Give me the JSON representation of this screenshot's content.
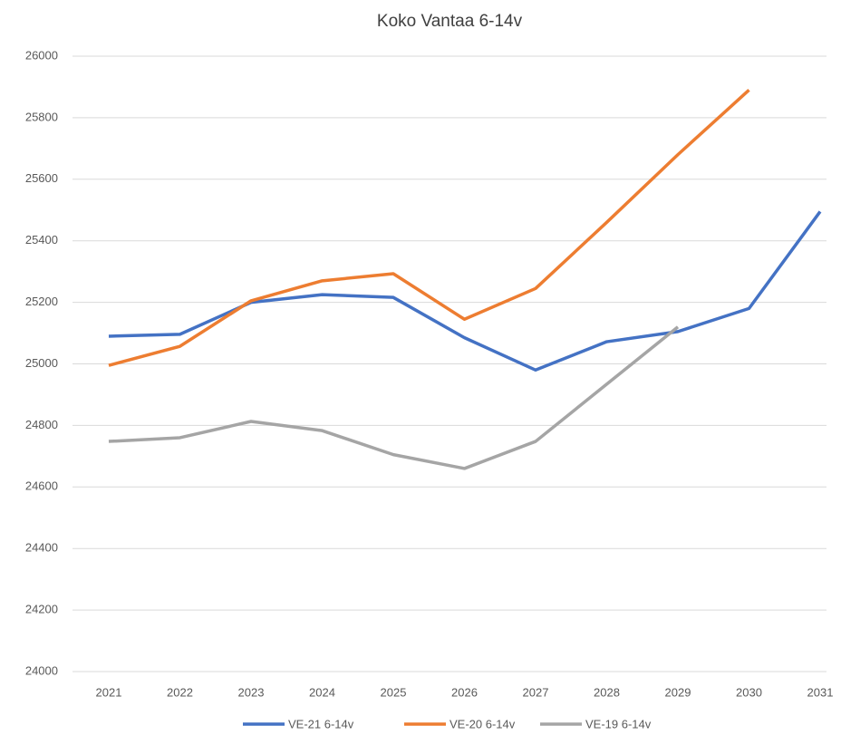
{
  "chart_data": {
    "type": "line",
    "title": "Koko Vantaa 6-14v",
    "categories": [
      "2021",
      "2022",
      "2023",
      "2024",
      "2025",
      "2026",
      "2027",
      "2028",
      "2029",
      "2030",
      "2031"
    ],
    "series": [
      {
        "name": "VE-21 6-14v",
        "color": "#4472c4",
        "values": [
          25090,
          25096,
          25200,
          25225,
          25216,
          25085,
          24980,
          25072,
          25105,
          25180,
          25495
        ]
      },
      {
        "name": "VE-20 6-14v",
        "color": "#ed7d31",
        "values": [
          24995,
          25057,
          25205,
          25270,
          25293,
          25145,
          25245,
          25460,
          25680,
          25890,
          null
        ]
      },
      {
        "name": "VE-19 6-14v",
        "color": "#a5a5a5",
        "values": [
          24748,
          24760,
          24813,
          24783,
          24705,
          24660,
          24748,
          24934,
          25120,
          null,
          null
        ]
      }
    ],
    "ylim": [
      24000,
      26000
    ],
    "yticks": [
      24000,
      24200,
      24400,
      24600,
      24800,
      25000,
      25200,
      25400,
      25600,
      25800,
      26000
    ],
    "grid": true,
    "legend": "bottom"
  }
}
